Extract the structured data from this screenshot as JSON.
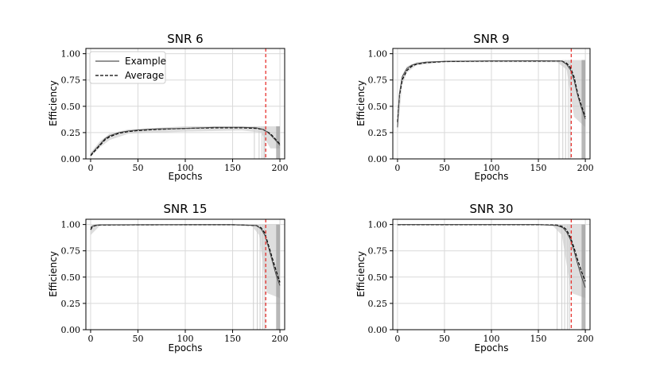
{
  "figure": {
    "chart_data": [
      {
        "type": "line",
        "title": "SNR 6",
        "xlabel": "Epochs",
        "ylabel": "Efficiency",
        "xlim": [
          -5,
          205
        ],
        "ylim": [
          0,
          1.05
        ],
        "xticks": [
          0,
          50,
          100,
          150,
          200
        ],
        "xtick_labels": [
          "0",
          "50",
          "100",
          "150",
          "200"
        ],
        "yticks": [
          0,
          0.25,
          0.5,
          0.75,
          1.0
        ],
        "ytick_labels": [
          "0.00",
          "0.25",
          "0.50",
          "0.75",
          "1.00"
        ],
        "grid": true,
        "vline": {
          "x": 185,
          "color": "#e8322e",
          "style": "dashed"
        },
        "legend": {
          "placement": "top-left",
          "entries": [
            {
              "label": "Example",
              "style": "solid",
              "color": "#555555"
            },
            {
              "label": "Average",
              "style": "dashed",
              "color": "#000000"
            }
          ]
        },
        "series": [
          {
            "name": "Average",
            "style": "dashed",
            "color": "#000000",
            "x": [
              0,
              5,
              10,
              15,
              20,
              30,
              40,
              50,
              70,
              100,
              130,
              160,
              175,
              182,
              186,
              190,
              194,
              198,
              200
            ],
            "y": [
              0.03,
              0.08,
              0.13,
              0.18,
              0.21,
              0.245,
              0.26,
              0.27,
              0.28,
              0.29,
              0.295,
              0.295,
              0.29,
              0.28,
              0.26,
              0.24,
              0.2,
              0.16,
              0.14
            ]
          },
          {
            "name": "Example",
            "style": "solid",
            "color": "#444444",
            "x": [
              0,
              5,
              10,
              15,
              20,
              30,
              40,
              50,
              70,
              100,
              130,
              160,
              175,
              182,
              186,
              190,
              194,
              198,
              200
            ],
            "y": [
              0.04,
              0.09,
              0.14,
              0.19,
              0.22,
              0.25,
              0.265,
              0.275,
              0.285,
              0.29,
              0.3,
              0.3,
              0.295,
              0.28,
              0.26,
              0.23,
              0.19,
              0.15,
              0.13
            ]
          }
        ],
        "band": {
          "x": [
            0,
            10,
            20,
            40,
            100,
            160,
            180,
            190,
            200
          ],
          "low": [
            0.02,
            0.11,
            0.18,
            0.24,
            0.26,
            0.27,
            0.25,
            0.1,
            0.1
          ],
          "high": [
            0.06,
            0.17,
            0.24,
            0.28,
            0.31,
            0.31,
            0.31,
            0.31,
            0.31
          ]
        },
        "drops": [
          173,
          178,
          181,
          183,
          184
        ]
      },
      {
        "type": "line",
        "title": "SNR 9",
        "xlabel": "Epochs",
        "ylabel": "Efficiency",
        "xlim": [
          -5,
          205
        ],
        "ylim": [
          0,
          1.05
        ],
        "xticks": [
          0,
          50,
          100,
          150,
          200
        ],
        "xtick_labels": [
          "0",
          "50",
          "100",
          "150",
          "200"
        ],
        "yticks": [
          0,
          0.25,
          0.5,
          0.75,
          1.0
        ],
        "ytick_labels": [
          "0.00",
          "0.25",
          "0.50",
          "0.75",
          "1.00"
        ],
        "grid": true,
        "vline": {
          "x": 185,
          "color": "#e8322e",
          "style": "dashed"
        },
        "series": [
          {
            "name": "Average",
            "style": "dashed",
            "color": "#000000",
            "x": [
              0,
              2,
              5,
              10,
              15,
              20,
              30,
              50,
              100,
              150,
              175,
              180,
              184,
              188,
              192,
              196,
              200
            ],
            "y": [
              0.35,
              0.6,
              0.75,
              0.84,
              0.88,
              0.9,
              0.915,
              0.925,
              0.93,
              0.93,
              0.93,
              0.91,
              0.87,
              0.78,
              0.62,
              0.5,
              0.4
            ]
          },
          {
            "name": "Example",
            "style": "solid",
            "color": "#444444",
            "x": [
              0,
              2,
              5,
              10,
              15,
              20,
              30,
              50,
              100,
              150,
              175,
              180,
              184,
              188,
              192,
              196,
              200
            ],
            "y": [
              0.3,
              0.62,
              0.78,
              0.86,
              0.89,
              0.905,
              0.92,
              0.928,
              0.932,
              0.933,
              0.93,
              0.9,
              0.85,
              0.75,
              0.6,
              0.48,
              0.38
            ]
          }
        ],
        "band": {
          "x": [
            0,
            5,
            10,
            20,
            50,
            170,
            180,
            188,
            200
          ],
          "low": [
            0.25,
            0.7,
            0.82,
            0.89,
            0.92,
            0.92,
            0.85,
            0.4,
            0.3
          ],
          "high": [
            0.4,
            0.8,
            0.88,
            0.92,
            0.935,
            0.94,
            0.94,
            0.94,
            0.94
          ]
        },
        "drops": [
          172,
          176,
          179,
          182,
          184
        ]
      },
      {
        "type": "line",
        "title": "SNR 15",
        "xlabel": "Epochs",
        "ylabel": "Efficiency",
        "xlim": [
          -5,
          205
        ],
        "ylim": [
          0,
          1.05
        ],
        "xticks": [
          0,
          50,
          100,
          150,
          200
        ],
        "xtick_labels": [
          "0",
          "50",
          "100",
          "150",
          "200"
        ],
        "yticks": [
          0,
          0.25,
          0.5,
          0.75,
          1.0
        ],
        "ytick_labels": [
          "0.00",
          "0.25",
          "0.50",
          "0.75",
          "1.00"
        ],
        "grid": true,
        "vline": {
          "x": 185,
          "color": "#e8322e",
          "style": "dashed"
        },
        "series": [
          {
            "name": "Average",
            "style": "dashed",
            "color": "#000000",
            "x": [
              0,
              2,
              5,
              10,
              50,
              100,
              150,
              175,
              180,
              184,
              188,
              192,
              196,
              200
            ],
            "y": [
              0.95,
              0.98,
              0.99,
              0.995,
              0.997,
              0.998,
              0.998,
              0.99,
              0.97,
              0.92,
              0.8,
              0.68,
              0.56,
              0.45
            ]
          },
          {
            "name": "Example",
            "style": "solid",
            "color": "#444444",
            "x": [
              0,
              2,
              5,
              10,
              50,
              100,
              150,
              175,
              180,
              184,
              188,
              192,
              196,
              200
            ],
            "y": [
              0.97,
              0.985,
              0.993,
              0.997,
              0.998,
              0.999,
              0.999,
              0.99,
              0.96,
              0.9,
              0.78,
              0.65,
              0.52,
              0.42
            ]
          }
        ],
        "band": {
          "x": [
            0,
            10,
            170,
            178,
            186,
            200
          ],
          "low": [
            0.9,
            0.99,
            0.99,
            0.9,
            0.35,
            0.3
          ],
          "high": [
            0.99,
            1.0,
            1.0,
            1.0,
            1.0,
            1.0
          ]
        },
        "drops": [
          172,
          176,
          179,
          182,
          184
        ]
      },
      {
        "type": "line",
        "title": "SNR 30",
        "xlabel": "Epochs",
        "ylabel": "Efficiency",
        "xlim": [
          -5,
          205
        ],
        "ylim": [
          0,
          1.05
        ],
        "xticks": [
          0,
          50,
          100,
          150,
          200
        ],
        "xtick_labels": [
          "0",
          "50",
          "100",
          "150",
          "200"
        ],
        "yticks": [
          0,
          0.25,
          0.5,
          0.75,
          1.0
        ],
        "ytick_labels": [
          "0.00",
          "0.25",
          "0.50",
          "0.75",
          "1.00"
        ],
        "grid": true,
        "vline": {
          "x": 185,
          "color": "#e8322e",
          "style": "dashed"
        },
        "series": [
          {
            "name": "Average",
            "style": "dashed",
            "color": "#000000",
            "x": [
              0,
              5,
              50,
              100,
              150,
              170,
              176,
              180,
              184,
              188,
              192,
              196,
              200
            ],
            "y": [
              0.998,
              0.999,
              0.999,
              0.999,
              0.999,
              0.995,
              0.98,
              0.95,
              0.88,
              0.78,
              0.66,
              0.55,
              0.46
            ]
          },
          {
            "name": "Example",
            "style": "solid",
            "color": "#444444",
            "x": [
              0,
              5,
              50,
              100,
              150,
              170,
              176,
              180,
              184,
              188,
              192,
              196,
              200
            ],
            "y": [
              0.999,
              1.0,
              1.0,
              1.0,
              1.0,
              0.99,
              0.97,
              0.93,
              0.86,
              0.75,
              0.62,
              0.5,
              0.4
            ]
          }
        ],
        "band": {
          "x": [
            0,
            165,
            175,
            185,
            200
          ],
          "low": [
            0.99,
            0.99,
            0.9,
            0.35,
            0.3
          ],
          "high": [
            1.0,
            1.0,
            1.0,
            1.0,
            1.0
          ]
        },
        "drops": [
          170,
          175,
          178,
          181,
          183
        ]
      }
    ]
  }
}
